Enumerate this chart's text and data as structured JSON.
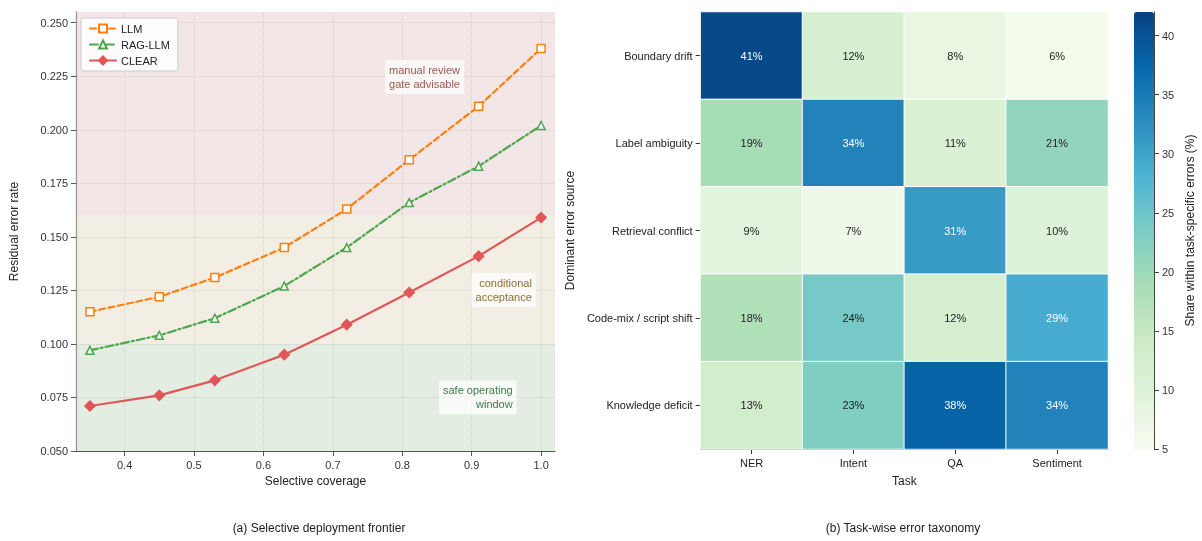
{
  "chart_data": [
    {
      "type": "line",
      "title": "(a) Selective deployment frontier",
      "xlabel": "Selective coverage",
      "ylabel": "Residual error rate",
      "x": [
        0.35,
        0.45,
        0.53,
        0.63,
        0.72,
        0.81,
        0.91,
        1.0
      ],
      "series": [
        {
          "name": "LLM",
          "color": "#ff7f0e",
          "marker": "square",
          "line_style": "dashed",
          "values": [
            0.115,
            0.122,
            0.131,
            0.145,
            0.163,
            0.186,
            0.211,
            0.238
          ]
        },
        {
          "name": "RAG-LLM",
          "color": "#4ca64c",
          "marker": "triangle",
          "line_style": "dashdot",
          "values": [
            0.097,
            0.104,
            0.112,
            0.127,
            0.145,
            0.166,
            0.183,
            0.202
          ]
        },
        {
          "name": "CLEAR",
          "color": "#e15759",
          "marker": "diamond",
          "line_style": "solid",
          "values": [
            0.071,
            0.076,
            0.083,
            0.095,
            0.109,
            0.124,
            0.141,
            0.159
          ]
        }
      ],
      "xlim": [
        0.33,
        1.02
      ],
      "xticks": [
        0.4,
        0.5,
        0.6,
        0.7,
        0.8,
        0.9,
        {
          "value": 1,
          "label": "1.0"
        }
      ],
      "ylim": [
        0.05,
        0.255
      ],
      "yticks": [
        {
          "value": 0.05,
          "label": "0.050"
        },
        {
          "value": 0.075,
          "label": "0.075"
        },
        {
          "value": 0.1,
          "label": "0.100"
        },
        {
          "value": 0.125,
          "label": "0.125"
        },
        {
          "value": 0.15,
          "label": "0.150"
        },
        {
          "value": 0.175,
          "label": "0.175"
        },
        {
          "value": 0.2,
          "label": "0.200"
        },
        {
          "value": 0.225,
          "label": "0.225"
        },
        {
          "value": 0.25,
          "label": "0.250"
        }
      ],
      "bands": [
        {
          "axis": "y",
          "from": 0.05,
          "to": 0.1,
          "label": "safe operating\nwindow",
          "color": "#e4ede2"
        },
        {
          "axis": "y",
          "from": 0.1,
          "to": 0.16,
          "label": "conditional\nacceptance",
          "color": "#f2eee3"
        },
        {
          "axis": "y",
          "from": 0.16,
          "to": 0.255,
          "label": "manual review\ngate advisable",
          "color": "#f3e6e7"
        }
      ],
      "grid": true,
      "legend": "top left"
    },
    {
      "type": "heatmap",
      "title": "(b) Task-wise error taxonomy",
      "xlabel": "Task",
      "ylabel": "Dominant error source",
      "clabel": "Share within task-specific errors (%)",
      "categories": [
        "NER",
        "Intent",
        "QA",
        "Sentiment"
      ],
      "y_categories": [
        "Boundary drift",
        "Label ambiguity",
        "Retrieval conflict",
        "Code-mix / script shift",
        "Knowledge deficit"
      ],
      "cells": [
        [
          41,
          12,
          8,
          6
        ],
        [
          19,
          34,
          11,
          21
        ],
        [
          9,
          7,
          31,
          10
        ],
        [
          18,
          24,
          12,
          29
        ],
        [
          13,
          23,
          38,
          34
        ]
      ],
      "cell_labels": [
        [
          "41%",
          "12%",
          "8%",
          "6%"
        ],
        [
          "19%",
          "34%",
          "11%",
          "21%"
        ],
        [
          "9%",
          "7%",
          "31%",
          "10%"
        ],
        [
          "18%",
          "24%",
          "12%",
          "29%"
        ],
        [
          "13%",
          "23%",
          "38%",
          "34%"
        ]
      ],
      "clim": [
        5,
        42
      ],
      "cticks": [
        5,
        10,
        15,
        20,
        25,
        30,
        35,
        40
      ]
    }
  ]
}
